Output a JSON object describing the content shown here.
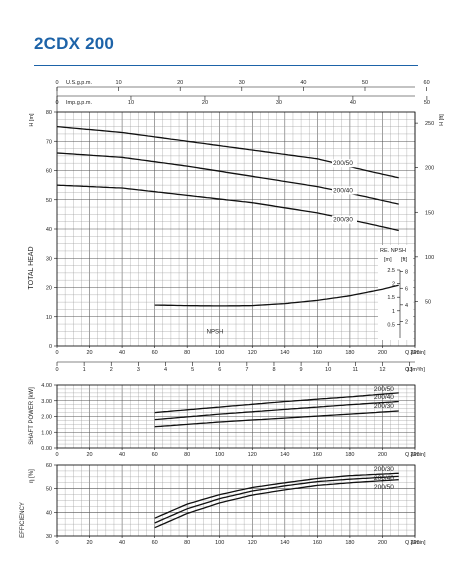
{
  "title": "2CDX 200",
  "chart_data": [
    {
      "type": "line",
      "panel": "head",
      "ylabel": "TOTAL HEAD",
      "y_unit_left": "H [m]",
      "y_unit_right": "H [ft]",
      "ylim": [
        0,
        80
      ],
      "y_ticks": [
        0,
        10,
        20,
        30,
        40,
        50,
        60,
        70,
        80
      ],
      "y2_ticks": [
        50,
        100,
        150,
        200,
        250
      ],
      "xlim": [
        0,
        220
      ],
      "x_ticks": [
        0,
        20,
        40,
        60,
        80,
        100,
        120,
        140,
        160,
        180,
        200,
        220
      ],
      "x_unit": "Q [l/min]",
      "top_axis_us": {
        "label": "U.S.g.p.m.",
        "ticks": [
          0,
          10,
          20,
          30,
          40,
          50,
          60
        ]
      },
      "top_axis_imp": {
        "label": "Imp.g.p.m.",
        "ticks": [
          0,
          10,
          20,
          30,
          40,
          50
        ]
      },
      "bottom_axis_m3h": {
        "unit": "Q [m³/h]",
        "ticks": [
          0,
          1,
          2,
          3,
          4,
          5,
          6,
          7,
          8,
          9,
          10,
          11,
          12,
          13
        ]
      },
      "series": [
        {
          "name": "200/50",
          "x": [
            0,
            40,
            80,
            120,
            160,
            190,
            210
          ],
          "y": [
            75,
            73,
            70,
            67,
            64,
            60,
            57.5
          ]
        },
        {
          "name": "200/40",
          "x": [
            0,
            40,
            80,
            120,
            160,
            190,
            210
          ],
          "y": [
            66,
            64.5,
            61.5,
            58,
            54.5,
            51,
            48.5
          ]
        },
        {
          "name": "200/30",
          "x": [
            0,
            40,
            80,
            120,
            160,
            190,
            210
          ],
          "y": [
            55,
            54,
            51.5,
            49,
            45.5,
            42,
            39.5
          ]
        },
        {
          "name": "NPSH",
          "x": [
            60,
            80,
            100,
            120,
            140,
            160,
            180,
            200,
            210
          ],
          "y": [
            14,
            13.8,
            13.7,
            13.8,
            14.5,
            15.6,
            17.2,
            19.4,
            20.8
          ]
        }
      ],
      "npsh_axis": {
        "label": "RE. NPSH",
        "unit_m": "[m]",
        "unit_ft": "[ft]",
        "m_ticks": [
          0.5,
          1,
          1.5,
          2,
          2.5
        ],
        "ft_ticks": [
          2,
          4,
          6,
          8
        ]
      }
    },
    {
      "type": "line",
      "panel": "power",
      "ylabel": "SHAFT POWER [kW]",
      "ylim": [
        0,
        4
      ],
      "y_ticks": [
        0.0,
        1.0,
        2.0,
        3.0,
        4.0
      ],
      "y_tick_labels": [
        "0.00",
        "1.00",
        "2.00",
        "3.00",
        "4.00"
      ],
      "xlim": [
        0,
        220
      ],
      "x_ticks": [
        0,
        20,
        40,
        60,
        80,
        100,
        120,
        140,
        160,
        180,
        200,
        220
      ],
      "x_unit": "Q [l/min]",
      "series": [
        {
          "name": "200/50",
          "x": [
            60,
            100,
            140,
            180,
            210
          ],
          "y": [
            2.25,
            2.6,
            2.95,
            3.25,
            3.5
          ]
        },
        {
          "name": "200/40",
          "x": [
            60,
            100,
            140,
            180,
            210
          ],
          "y": [
            1.8,
            2.15,
            2.45,
            2.75,
            2.95
          ]
        },
        {
          "name": "200/30",
          "x": [
            60,
            100,
            140,
            180,
            210
          ],
          "y": [
            1.35,
            1.65,
            1.9,
            2.15,
            2.35
          ]
        }
      ]
    },
    {
      "type": "line",
      "panel": "efficiency",
      "ylabel": "EFFICIENCY",
      "y_unit": "η [%]",
      "ylim": [
        30,
        60
      ],
      "y_ticks": [
        30,
        40,
        50,
        60
      ],
      "xlim": [
        0,
        220
      ],
      "x_ticks": [
        0,
        20,
        40,
        60,
        80,
        100,
        120,
        140,
        160,
        180,
        200,
        220
      ],
      "x_unit": "Q [l/min]",
      "series": [
        {
          "name": "200/30",
          "x": [
            60,
            80,
            100,
            120,
            140,
            160,
            180,
            210
          ],
          "y": [
            37.5,
            43.5,
            47.5,
            50.5,
            52.5,
            54.3,
            55.5,
            56.5
          ]
        },
        {
          "name": "200/40",
          "x": [
            60,
            80,
            100,
            120,
            140,
            160,
            180,
            210
          ],
          "y": [
            35.5,
            41.5,
            45.8,
            49,
            51.2,
            53,
            54,
            55.2
          ]
        },
        {
          "name": "200/50",
          "x": [
            60,
            80,
            100,
            120,
            140,
            160,
            180,
            210
          ],
          "y": [
            33.5,
            39.5,
            44,
            47.3,
            49.5,
            51.4,
            52.5,
            53.8
          ]
        }
      ]
    }
  ]
}
